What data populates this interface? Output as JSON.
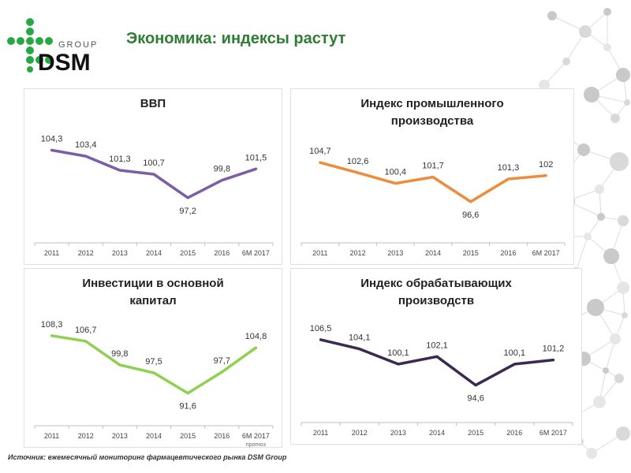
{
  "header": {
    "logo_group": "GROUP",
    "logo_dsm": "DSM",
    "title": "Экономика: индексы растут"
  },
  "footer": {
    "source": "Источник: ежемесячный мониторинг фармацевтического рынка DSM Group"
  },
  "colors": {
    "brand_green": "#2e7d32",
    "logo_green": "#27a845"
  },
  "chart_data": [
    {
      "type": "line",
      "title": [
        "ВВП"
      ],
      "categories": [
        "2011",
        "2012",
        "2013",
        "2014",
        "2015",
        "2016",
        "6M 2017"
      ],
      "values": [
        104.3,
        103.4,
        101.3,
        100.7,
        97.2,
        99.8,
        101.5
      ],
      "value_labels": [
        "104,3",
        "103,4",
        "101,3",
        "100,7",
        "97,2",
        "99,8",
        "101,5"
      ],
      "color": "#7b5ea7",
      "ylim": [
        94,
        106
      ],
      "note": ""
    },
    {
      "type": "line",
      "title": [
        "Индекс промышленного",
        "производства"
      ],
      "categories": [
        "2011",
        "2012",
        "2013",
        "2014",
        "2015",
        "2016",
        "6M 2017"
      ],
      "values": [
        104.7,
        102.6,
        100.4,
        101.7,
        96.6,
        101.3,
        102
      ],
      "value_labels": [
        "104,7",
        "102,6",
        "100,4",
        "101,7",
        "96,6",
        "101,3",
        "102"
      ],
      "color": "#ec8c3c",
      "ylim": [
        93,
        108
      ],
      "note": ""
    },
    {
      "type": "line",
      "title": [
        "Инвестиции в основной",
        "капитал"
      ],
      "categories": [
        "2011",
        "2012",
        "2013",
        "2014",
        "2015",
        "2016",
        "6M 2017"
      ],
      "values": [
        108.3,
        106.7,
        99.8,
        97.5,
        91.6,
        97.7,
        104.8
      ],
      "value_labels": [
        "108,3",
        "106,7",
        "99,8",
        "97,5",
        "91,6",
        "97,7",
        "104,8"
      ],
      "color": "#8fd14f",
      "ylim": [
        89,
        111
      ],
      "note": "прогноз"
    },
    {
      "type": "line",
      "title": [
        "Индекс обрабатывающих",
        "производств"
      ],
      "categories": [
        "2011",
        "2012",
        "2013",
        "2014",
        "2015",
        "2016",
        "6M 2017"
      ],
      "values": [
        106.5,
        104.1,
        100.1,
        102.1,
        94.6,
        100.1,
        101.2
      ],
      "value_labels": [
        "106,5",
        "104,1",
        "100,1",
        "102,1",
        "94,6",
        "100,1",
        "101,2"
      ],
      "color": "#3b2a4f",
      "ylim": [
        91,
        110
      ],
      "note": ""
    }
  ]
}
